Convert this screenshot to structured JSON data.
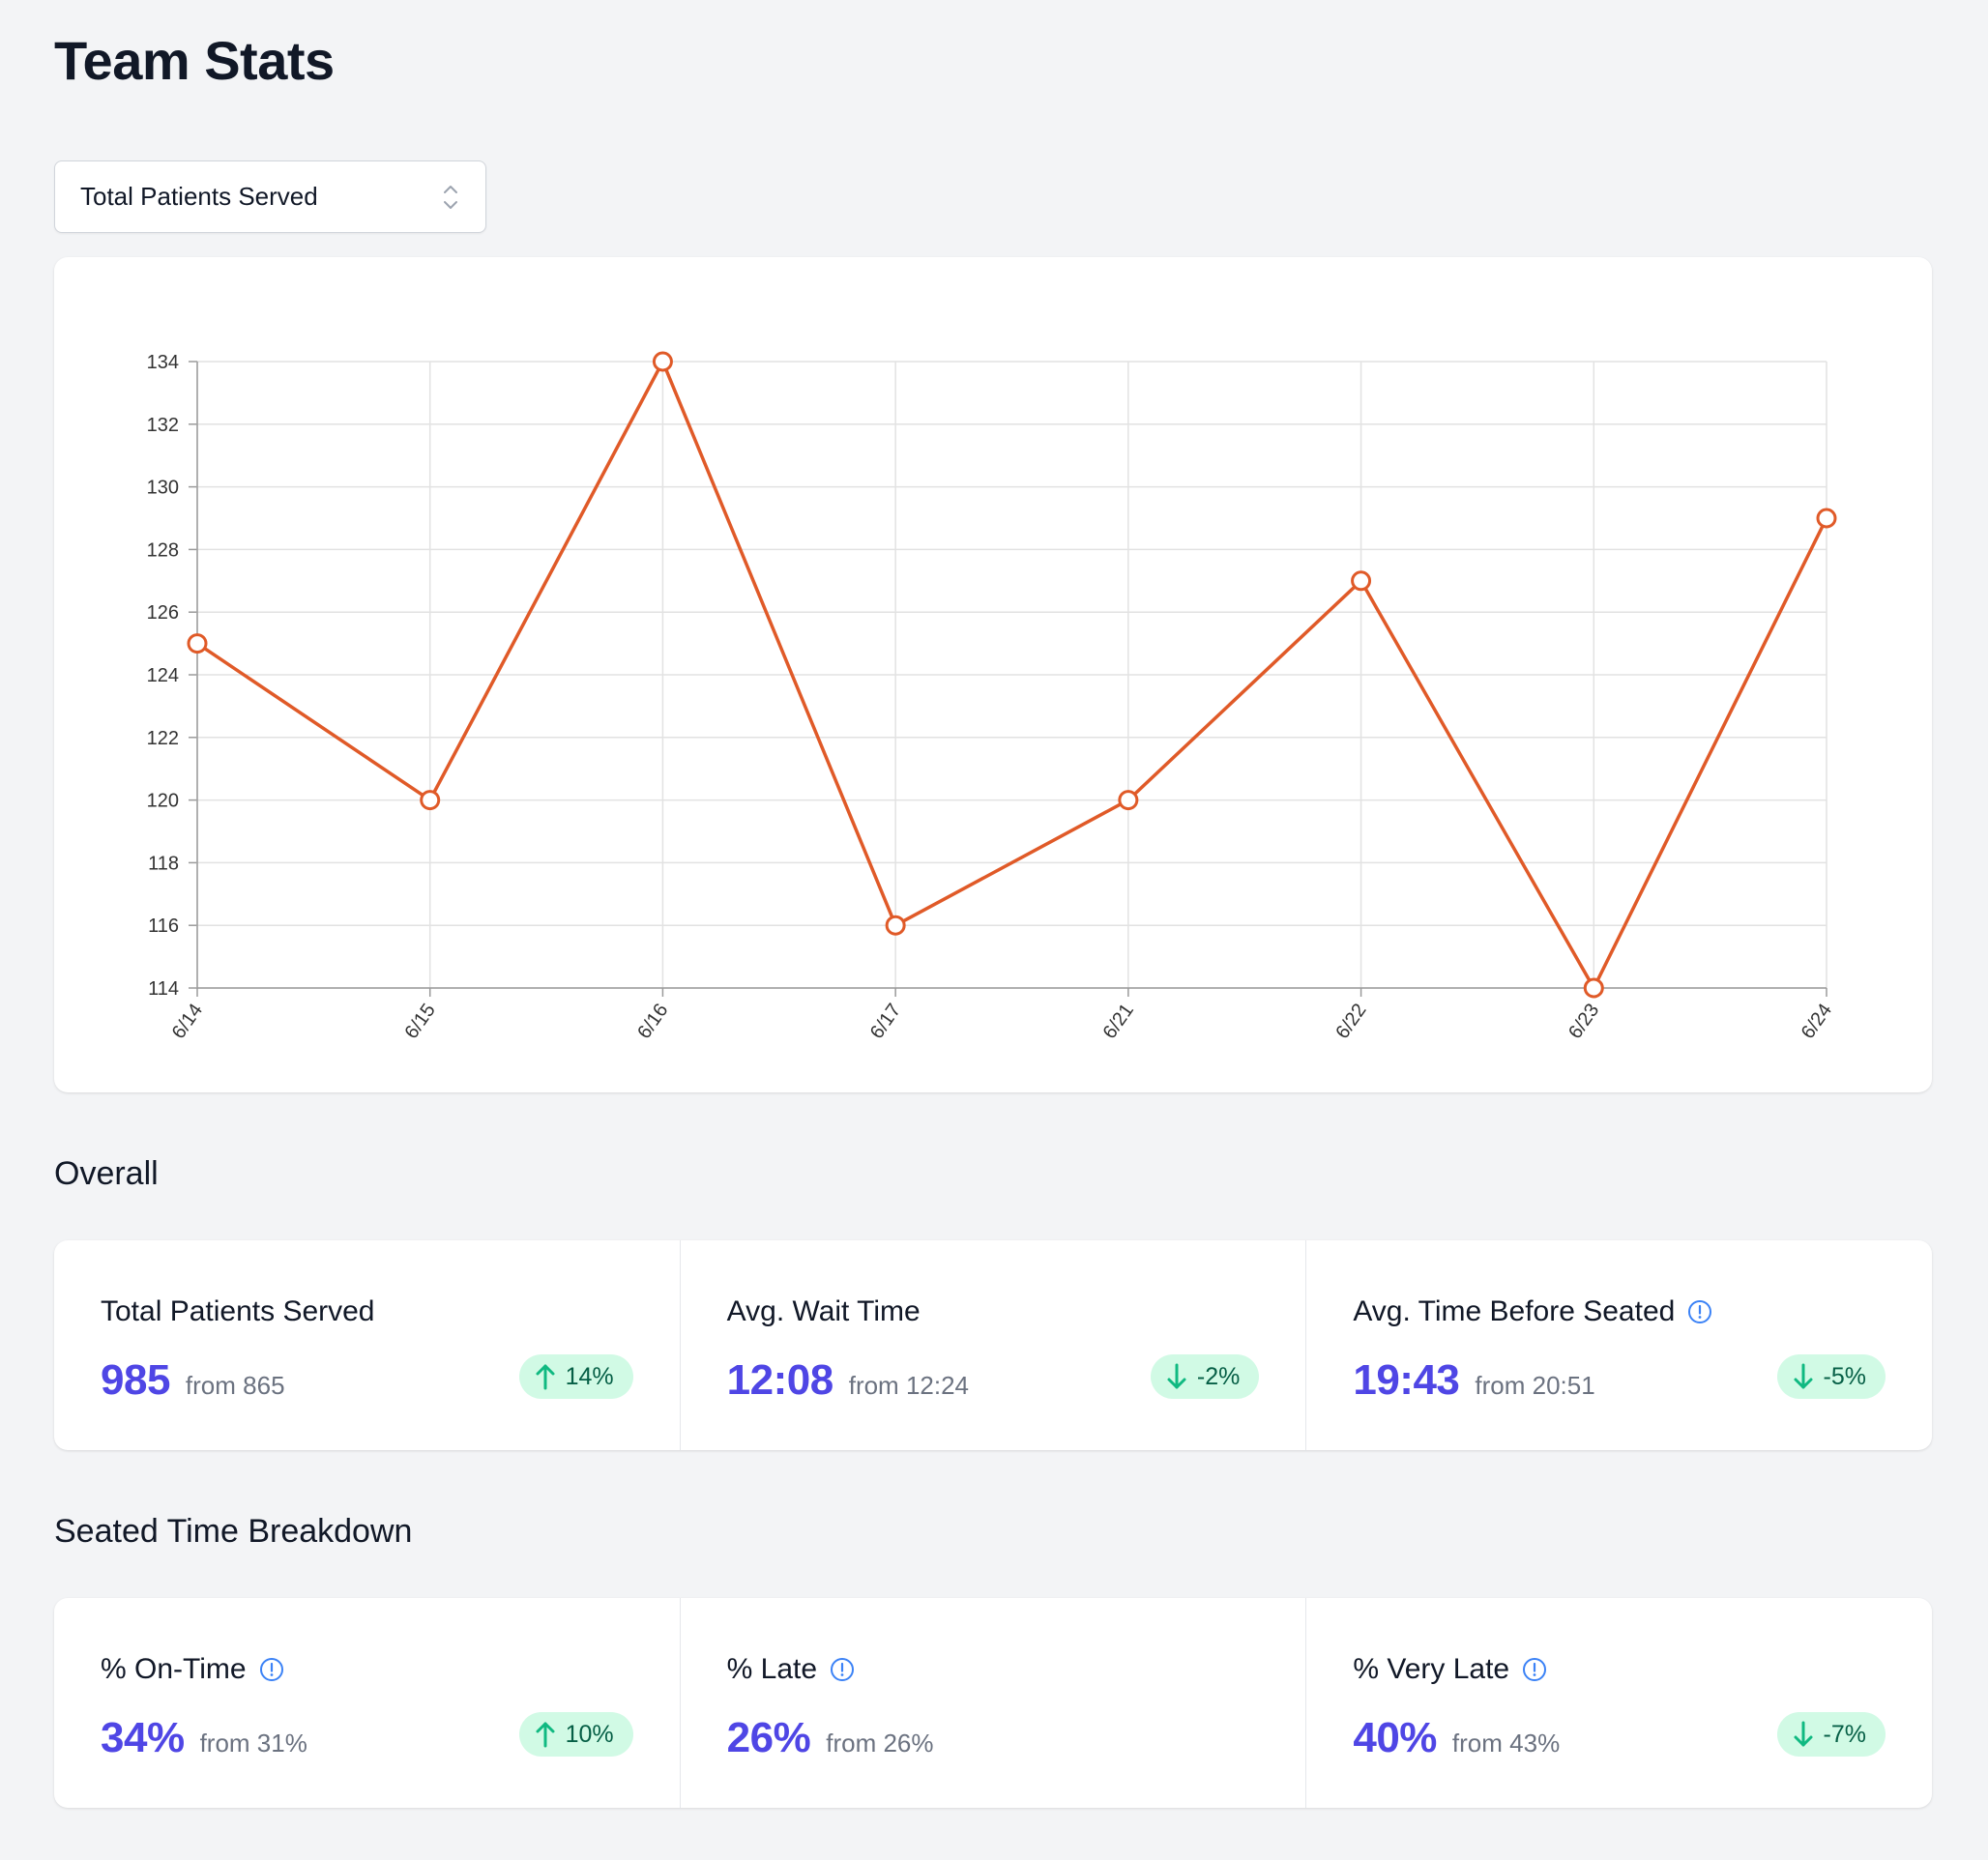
{
  "page": {
    "title": "Team Stats"
  },
  "metric_select": {
    "value": "Total Patients Served",
    "icon": "chevron-up-down-icon"
  },
  "chart_data": {
    "type": "line",
    "title": "",
    "xlabel": "",
    "ylabel": "",
    "x": [
      "6/14",
      "6/15",
      "6/16",
      "6/17",
      "6/21",
      "6/22",
      "6/23",
      "6/24"
    ],
    "series": [
      {
        "values": [
          125,
          120,
          134,
          116,
          120,
          127,
          114,
          129
        ],
        "color": "#e05a28"
      }
    ],
    "ylim": [
      114,
      134
    ],
    "yticks": [
      134,
      132,
      130,
      128,
      126,
      124,
      122,
      120,
      118,
      116,
      114
    ],
    "grid": true,
    "markers": "hollow-circle"
  },
  "sections": {
    "overall": {
      "title": "Overall",
      "stats": [
        {
          "label": "Total Patients Served",
          "value": "985",
          "from": "from 865",
          "change": "14%",
          "direction": "up",
          "info": false
        },
        {
          "label": "Avg. Wait Time",
          "value": "12:08",
          "from": "from 12:24",
          "change": "-2%",
          "direction": "down",
          "info": false
        },
        {
          "label": "Avg. Time Before Seated",
          "value": "19:43",
          "from": "from 20:51",
          "change": "-5%",
          "direction": "down",
          "info": true
        }
      ]
    },
    "seated": {
      "title": "Seated Time Breakdown",
      "stats": [
        {
          "label": "% On-Time",
          "value": "34%",
          "from": "from 31%",
          "change": "10%",
          "direction": "up",
          "info": true
        },
        {
          "label": "% Late",
          "value": "26%",
          "from": "from 26%",
          "change": null,
          "direction": null,
          "info": true
        },
        {
          "label": "% Very Late",
          "value": "40%",
          "from": "from 43%",
          "change": "-7%",
          "direction": "down",
          "info": true
        }
      ]
    }
  },
  "colors": {
    "accent": "#4f46e5",
    "line": "#e05a28",
    "badge_bg": "#d1fae5",
    "badge_arrow": "#10b981",
    "info_icon": "#3b82f6"
  }
}
